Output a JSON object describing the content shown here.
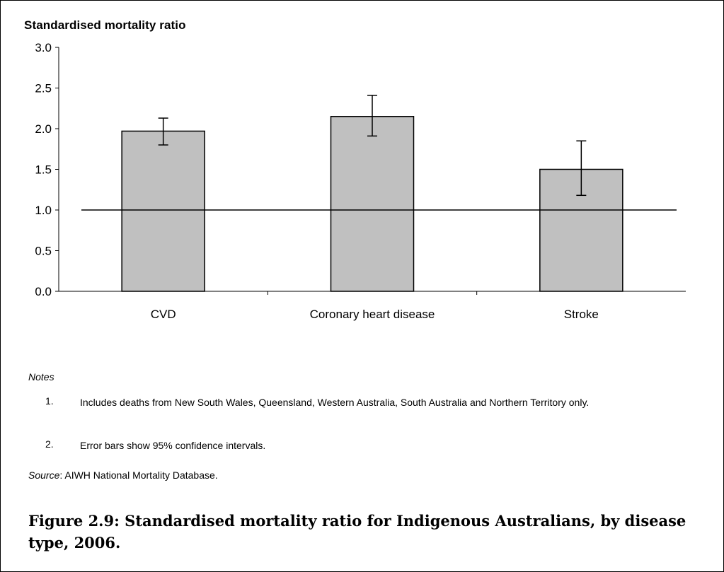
{
  "chart_data": {
    "type": "bar",
    "ylabel": "Standardised mortality ratio",
    "categories": [
      "CVD",
      "Coronary heart disease",
      "Stroke"
    ],
    "values": [
      1.97,
      2.15,
      1.5
    ],
    "error_low": [
      1.8,
      1.91,
      1.18
    ],
    "error_high": [
      2.13,
      2.41,
      1.85
    ],
    "reference_line": 1.0,
    "ylim": [
      0,
      3.0
    ],
    "yticks": [
      "0.0",
      "0.5",
      "1.0",
      "1.5",
      "2.0",
      "2.5",
      "3.0"
    ],
    "bar_color": "#c0c0c0",
    "grid": false,
    "legend": "none"
  },
  "notes": {
    "heading": "Notes",
    "items": [
      {
        "num": "1.",
        "text": "Includes deaths from New South Wales, Queensland, Western Australia, South Australia and Northern Territory only."
      },
      {
        "num": "2.",
        "text": "Error bars show 95% confidence intervals."
      }
    ]
  },
  "source": {
    "label": "Source",
    "text": ": AIWH National Mortality Database."
  },
  "caption": "Figure 2.9: Standardised mortality ratio for Indigenous Australians, by disease type, 2006."
}
